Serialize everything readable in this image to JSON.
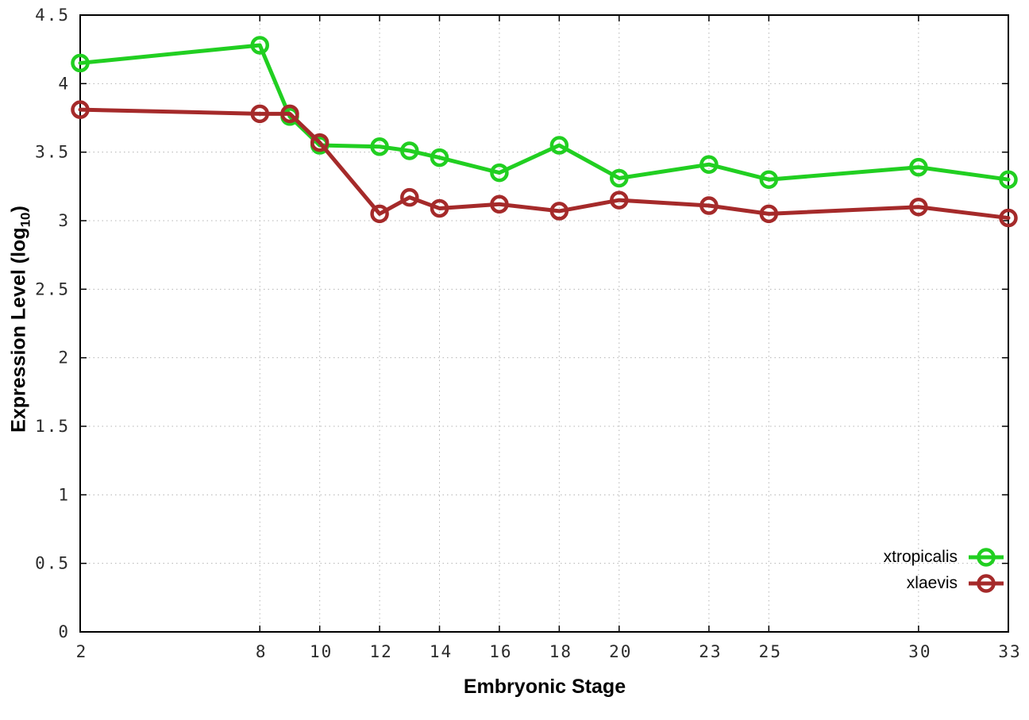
{
  "chart_data": {
    "type": "line",
    "title": "",
    "xlabel": "Embryonic Stage",
    "ylabel": "Expression Level (log10)",
    "ylabel_parts": {
      "prefix": "Expression Level (log",
      "sub": "10",
      "suffix": ")"
    },
    "xlim": [
      2,
      33
    ],
    "ylim": [
      0,
      4.5
    ],
    "x_ticks": [
      2,
      8,
      10,
      12,
      14,
      16,
      18,
      20,
      23,
      25,
      30,
      33
    ],
    "y_ticks": [
      0,
      0.5,
      1,
      1.5,
      2,
      2.5,
      3,
      3.5,
      4,
      4.5
    ],
    "grid": true,
    "legend_position": "bottom-right",
    "x": [
      2,
      8,
      9,
      10,
      12,
      13,
      14,
      16,
      18,
      20,
      23,
      25,
      30,
      33
    ],
    "series": [
      {
        "name": "xtropicalis",
        "color": "#21cf21",
        "values": [
          4.15,
          4.28,
          3.76,
          3.55,
          3.54,
          3.51,
          3.46,
          3.35,
          3.55,
          3.31,
          3.41,
          3.3,
          3.39,
          3.3
        ]
      },
      {
        "name": "xlaevis",
        "color": "#a52a2a",
        "values": [
          3.81,
          3.78,
          3.78,
          3.57,
          3.05,
          3.17,
          3.09,
          3.12,
          3.07,
          3.15,
          3.11,
          3.05,
          3.1,
          3.02
        ]
      }
    ],
    "colors": {
      "border": "#000000",
      "grid": "#b4b4b4",
      "tick_text": "#2b2b2b"
    }
  }
}
